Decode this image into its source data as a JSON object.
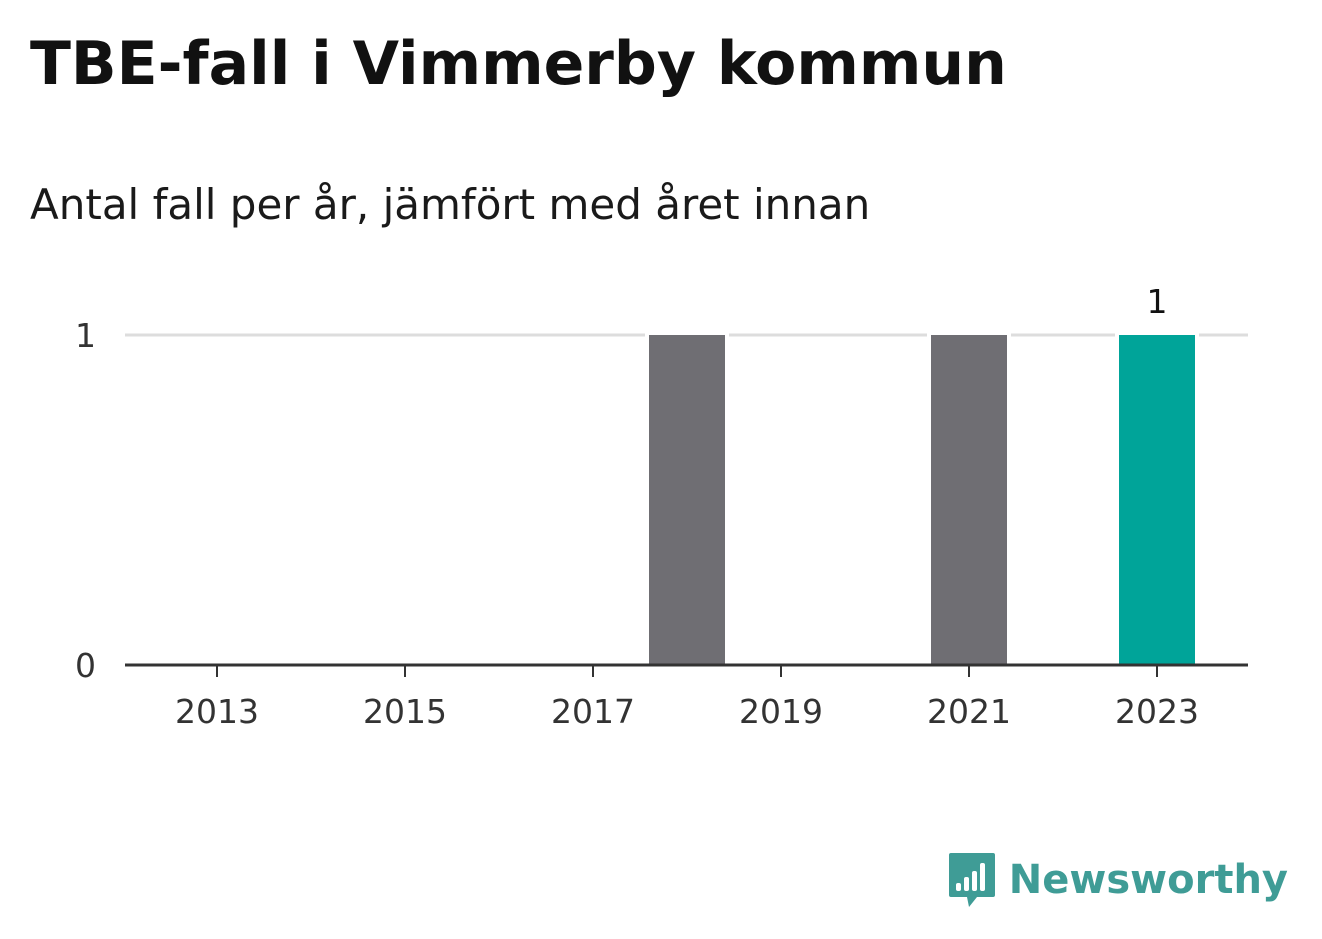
{
  "header": {
    "title": "TBE-fall i Vimmerby kommun",
    "subtitle": "Antal fall per år, jämfört med året innan"
  },
  "branding": {
    "logo_text": "Newsworthy",
    "logo_icon": "chart-bubble-icon",
    "logo_color": "#3f9c96"
  },
  "chart_data": {
    "type": "bar",
    "title": "TBE-fall i Vimmerby kommun",
    "subtitle": "Antal fall per år, jämfört med året innan",
    "xlabel": "",
    "ylabel": "",
    "categories": [
      "2013",
      "2014",
      "2015",
      "2016",
      "2017",
      "2018",
      "2019",
      "2020",
      "2021",
      "2022",
      "2023"
    ],
    "values": [
      0,
      0,
      0,
      0,
      0,
      1,
      0,
      0,
      1,
      0,
      1
    ],
    "x_tick_labels": [
      "2013",
      "2015",
      "2017",
      "2019",
      "2021",
      "2023"
    ],
    "y_tick_labels": [
      "0",
      "1"
    ],
    "ylim": [
      0,
      1
    ],
    "grid": true,
    "highlight_category": "2023",
    "highlight_value_label": "1",
    "colors": {
      "default_bar": "#6f6e73",
      "highlight_bar": "#00a499",
      "gridline": "#dddddd",
      "baseline": "#333333"
    }
  }
}
